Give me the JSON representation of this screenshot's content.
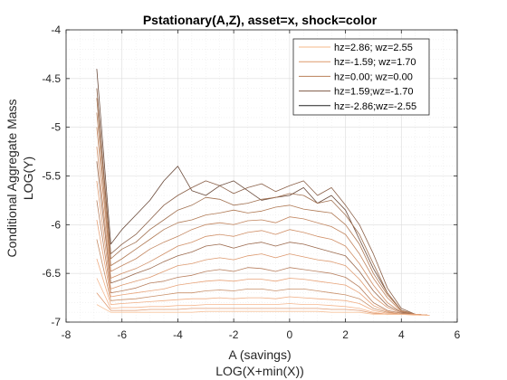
{
  "chart_data": {
    "type": "line",
    "title": "Pstationary(A,Z), asset=x, shock=color",
    "xlabel_lines": [
      "A (savings)",
      "LOG(X+min(X))"
    ],
    "ylabel_lines": [
      "Conditional Aggregate Mass",
      "LOG(Y)"
    ],
    "xlim": [
      -8,
      6
    ],
    "ylim": [
      -7,
      -4
    ],
    "xticks": [
      -8,
      -6,
      -4,
      -2,
      0,
      2,
      4,
      6
    ],
    "yticks": [
      -4,
      -4.5,
      -5,
      -5.5,
      -6,
      -6.5,
      -7
    ],
    "grid": true,
    "legend_location": "top-right",
    "legend": [
      {
        "label": "hz=2.86; wz=2.55",
        "color": "#f4b98a"
      },
      {
        "label": "hz=-1.59; wz=1.70",
        "color": "#dd9a6c"
      },
      {
        "label": "hz=0.00; wz=0.00",
        "color": "#b9805a"
      },
      {
        "label": "hz=1.59;wz=-1.70",
        "color": "#7f5a45"
      },
      {
        "label": "hz=-2.86;wz=-2.55",
        "color": "#222222"
      }
    ],
    "x": [
      -6.9,
      -6.4,
      -6,
      -5.5,
      -5,
      -4.5,
      -4,
      -3.5,
      -3,
      -2.5,
      -2,
      -1.5,
      -1,
      -0.5,
      0,
      0.5,
      1,
      1.5,
      2,
      2.5,
      3,
      3.5,
      4,
      4.5,
      5
    ],
    "series": [
      {
        "color": "#6a4a3a",
        "values": [
          -4.4,
          -6.2,
          -6.05,
          -5.9,
          -5.75,
          -5.55,
          -5.4,
          -5.65,
          -5.7,
          -5.6,
          -5.55,
          -5.65,
          -5.75,
          -5.72,
          -5.7,
          -5.62,
          -5.78,
          -5.7,
          -5.85,
          -6.15,
          -6.45,
          -6.7,
          -6.88,
          -6.92,
          -6.93
        ]
      },
      {
        "color": "#8a6048",
        "values": [
          -4.6,
          -6.3,
          -6.2,
          -6.1,
          -5.95,
          -5.8,
          -5.7,
          -5.62,
          -5.55,
          -5.6,
          -5.68,
          -5.62,
          -5.58,
          -5.66,
          -5.6,
          -5.55,
          -5.7,
          -5.62,
          -5.8,
          -6.0,
          -6.3,
          -6.65,
          -6.86,
          -6.92,
          -6.93
        ]
      },
      {
        "color": "#a07050",
        "values": [
          -4.7,
          -6.35,
          -6.25,
          -6.18,
          -6.05,
          -5.95,
          -5.85,
          -5.8,
          -5.72,
          -5.74,
          -5.8,
          -5.78,
          -5.74,
          -5.72,
          -5.68,
          -5.7,
          -5.78,
          -5.75,
          -5.9,
          -6.1,
          -6.4,
          -6.7,
          -6.88,
          -6.92,
          -6.93
        ]
      },
      {
        "color": "#b07a55",
        "values": [
          -4.85,
          -6.42,
          -6.35,
          -6.25,
          -6.15,
          -6.05,
          -5.98,
          -5.95,
          -5.9,
          -5.88,
          -5.85,
          -5.88,
          -5.86,
          -5.82,
          -5.8,
          -5.84,
          -5.86,
          -5.88,
          -6.0,
          -6.2,
          -6.5,
          -6.72,
          -6.88,
          -6.92,
          -6.93
        ]
      },
      {
        "color": "#c28660",
        "values": [
          -5.0,
          -6.48,
          -6.42,
          -6.35,
          -6.25,
          -6.18,
          -6.12,
          -6.05,
          -6.0,
          -5.98,
          -6.0,
          -5.96,
          -5.95,
          -5.98,
          -5.92,
          -5.94,
          -5.98,
          -6.02,
          -6.1,
          -6.3,
          -6.55,
          -6.75,
          -6.89,
          -6.92,
          -6.93
        ]
      },
      {
        "color": "#d09068",
        "values": [
          -5.2,
          -6.55,
          -6.5,
          -6.45,
          -6.38,
          -6.3,
          -6.22,
          -6.18,
          -6.12,
          -6.1,
          -6.12,
          -6.08,
          -6.06,
          -6.1,
          -6.05,
          -6.08,
          -6.12,
          -6.15,
          -6.22,
          -6.4,
          -6.62,
          -6.8,
          -6.9,
          -6.92,
          -6.93
        ]
      },
      {
        "color": "#9b6a4e",
        "values": [
          -5.35,
          -6.6,
          -6.56,
          -6.5,
          -6.45,
          -6.38,
          -6.32,
          -6.28,
          -6.22,
          -6.2,
          -6.24,
          -6.2,
          -6.18,
          -6.22,
          -6.18,
          -6.2,
          -6.24,
          -6.28,
          -6.32,
          -6.48,
          -6.68,
          -6.83,
          -6.9,
          -6.92,
          -6.93
        ]
      },
      {
        "color": "#dd9a70",
        "values": [
          -5.55,
          -6.66,
          -6.62,
          -6.58,
          -6.54,
          -6.48,
          -6.42,
          -6.4,
          -6.36,
          -6.34,
          -6.36,
          -6.32,
          -6.3,
          -6.34,
          -6.3,
          -6.33,
          -6.36,
          -6.38,
          -6.42,
          -6.56,
          -6.74,
          -6.85,
          -6.91,
          -6.92,
          -6.93
        ]
      },
      {
        "color": "#b88060",
        "values": [
          -5.75,
          -6.7,
          -6.68,
          -6.65,
          -6.6,
          -6.58,
          -6.54,
          -6.52,
          -6.48,
          -6.46,
          -6.48,
          -6.44,
          -6.45,
          -6.48,
          -6.44,
          -6.46,
          -6.48,
          -6.5,
          -6.54,
          -6.64,
          -6.8,
          -6.88,
          -6.91,
          -6.92,
          -6.93
        ]
      },
      {
        "color": "#e8a47a",
        "values": [
          -5.95,
          -6.74,
          -6.72,
          -6.7,
          -6.68,
          -6.66,
          -6.62,
          -6.6,
          -6.58,
          -6.57,
          -6.58,
          -6.56,
          -6.56,
          -6.58,
          -6.55,
          -6.56,
          -6.58,
          -6.6,
          -6.62,
          -6.7,
          -6.83,
          -6.89,
          -6.92,
          -6.92,
          -6.93
        ]
      },
      {
        "color": "#c8906a",
        "values": [
          -6.15,
          -6.78,
          -6.77,
          -6.76,
          -6.74,
          -6.72,
          -6.7,
          -6.7,
          -6.68,
          -6.67,
          -6.68,
          -6.66,
          -6.66,
          -6.68,
          -6.66,
          -6.66,
          -6.68,
          -6.7,
          -6.72,
          -6.76,
          -6.86,
          -6.9,
          -6.92,
          -6.92,
          -6.93
        ]
      },
      {
        "color": "#f0ae84",
        "values": [
          -6.35,
          -6.82,
          -6.81,
          -6.8,
          -6.79,
          -6.78,
          -6.77,
          -6.76,
          -6.76,
          -6.75,
          -6.76,
          -6.75,
          -6.75,
          -6.76,
          -6.74,
          -6.75,
          -6.76,
          -6.77,
          -6.78,
          -6.81,
          -6.88,
          -6.91,
          -6.92,
          -6.92,
          -6.93
        ]
      },
      {
        "color": "#f5b890",
        "values": [
          -6.55,
          -6.86,
          -6.85,
          -6.85,
          -6.84,
          -6.84,
          -6.83,
          -6.83,
          -6.82,
          -6.82,
          -6.82,
          -6.82,
          -6.82,
          -6.82,
          -6.81,
          -6.82,
          -6.82,
          -6.83,
          -6.84,
          -6.86,
          -6.9,
          -6.92,
          -6.92,
          -6.92,
          -6.93
        ]
      },
      {
        "color": "#e09c74",
        "values": [
          -6.7,
          -6.88,
          -6.88,
          -6.88,
          -6.87,
          -6.87,
          -6.87,
          -6.86,
          -6.86,
          -6.86,
          -6.86,
          -6.86,
          -6.86,
          -6.86,
          -6.86,
          -6.86,
          -6.86,
          -6.87,
          -6.87,
          -6.88,
          -6.91,
          -6.92,
          -6.92,
          -6.92,
          -6.93
        ]
      },
      {
        "color": "#f7c39c",
        "values": [
          -6.82,
          -6.9,
          -6.9,
          -6.9,
          -6.9,
          -6.9,
          -6.9,
          -6.9,
          -6.89,
          -6.89,
          -6.89,
          -6.89,
          -6.89,
          -6.89,
          -6.89,
          -6.89,
          -6.89,
          -6.9,
          -6.9,
          -6.9,
          -6.92,
          -6.92,
          -6.92,
          -6.93,
          -6.93
        ]
      }
    ]
  }
}
